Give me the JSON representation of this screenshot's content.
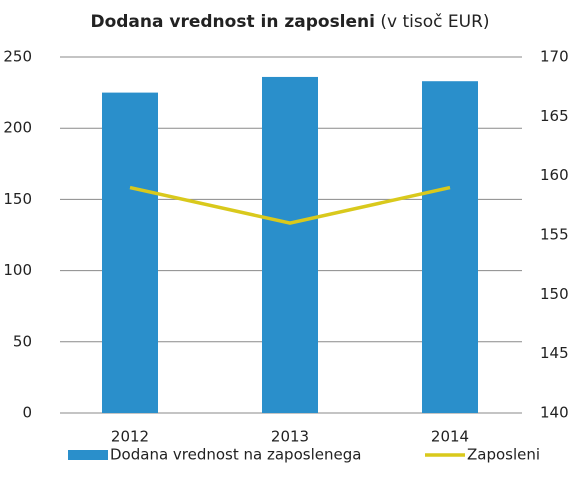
{
  "chart_data": {
    "type": "bar_line",
    "title": "Dodana vrednost in zaposleni",
    "subtitle": "(v tisoč EUR)",
    "categories": [
      "2012",
      "2013",
      "2014"
    ],
    "series": [
      {
        "name": "Dodana vrednost na zaposlenega",
        "color": "#2a8fcb",
        "type": "bar",
        "values": [
          225,
          236,
          233
        ]
      },
      {
        "name": "Zaposleni",
        "color": "#d9c91c",
        "type": "line",
        "axis": "y2",
        "values": [
          159,
          156,
          159
        ]
      }
    ],
    "ylim": [
      0,
      250
    ],
    "yticks": [
      0,
      50,
      100,
      150,
      200,
      250
    ],
    "y2lim": [
      140,
      170
    ],
    "y2ticks": [
      140,
      145,
      150,
      155,
      160,
      165,
      170
    ],
    "grid": true,
    "legend": "bottom"
  }
}
